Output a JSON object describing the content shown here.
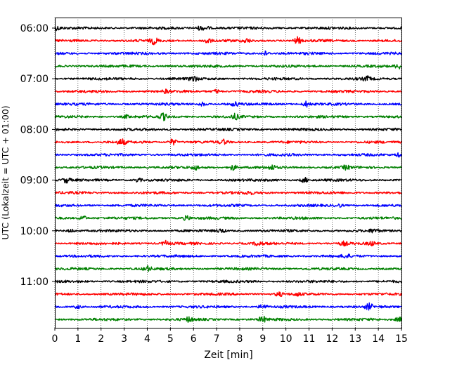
{
  "chart_data": {
    "type": "line",
    "title": "",
    "xlabel": "Zeit  [min]",
    "ylabel": "UTC (Lokalzeit = UTC + 01:00)",
    "xlim": [
      0,
      15
    ],
    "x_ticks": [
      "0",
      "1",
      "2",
      "3",
      "4",
      "5",
      "6",
      "7",
      "8",
      "9",
      "10",
      "11",
      "12",
      "13",
      "14",
      "15"
    ],
    "y_tick_labels": [
      "06:00",
      "07:00",
      "08:00",
      "09:00",
      "10:00",
      "11:00"
    ],
    "grid": "vertical dotted lines at each minute",
    "trace_interval_minutes": 15,
    "color_cycle": [
      "#000000",
      "#ff0000",
      "#0000ff",
      "#008000"
    ],
    "traces": [
      {
        "start": "06:00",
        "color": "#000000",
        "events": [
          {
            "t": 0.1,
            "amp": 2.5
          },
          {
            "t": 6.3,
            "amp": 3.0
          },
          {
            "t": 6.6,
            "amp": 2.0
          }
        ]
      },
      {
        "start": "06:15",
        "color": "#ff0000",
        "events": [
          {
            "t": 4.3,
            "amp": 4.5
          },
          {
            "t": 6.6,
            "amp": 4.0
          },
          {
            "t": 8.3,
            "amp": 2.5
          },
          {
            "t": 10.5,
            "amp": 4.5
          }
        ]
      },
      {
        "start": "06:30",
        "color": "#0000ff",
        "events": [
          {
            "t": 9.1,
            "amp": 3.0
          }
        ]
      },
      {
        "start": "06:45",
        "color": "#008000",
        "events": [
          {
            "t": 14.9,
            "amp": 3.5
          }
        ]
      },
      {
        "start": "07:00",
        "color": "#000000",
        "events": [
          {
            "t": 6.0,
            "amp": 3.5
          },
          {
            "t": 13.5,
            "amp": 3.0
          }
        ]
      },
      {
        "start": "07:15",
        "color": "#ff0000",
        "events": [
          {
            "t": 4.8,
            "amp": 2.0
          },
          {
            "t": 7.0,
            "amp": 2.5
          }
        ]
      },
      {
        "start": "07:30",
        "color": "#0000ff",
        "events": [
          {
            "t": 6.4,
            "amp": 2.5
          },
          {
            "t": 7.8,
            "amp": 2.5
          },
          {
            "t": 10.9,
            "amp": 4.0
          }
        ]
      },
      {
        "start": "07:45",
        "color": "#008000",
        "events": [
          {
            "t": 4.7,
            "amp": 4.5
          },
          {
            "t": 7.8,
            "amp": 3.5
          },
          {
            "t": 3.1,
            "amp": 2.0
          }
        ]
      },
      {
        "start": "08:00",
        "color": "#000000",
        "events": []
      },
      {
        "start": "08:15",
        "color": "#ff0000",
        "events": [
          {
            "t": 2.9,
            "amp": 4.0
          },
          {
            "t": 5.1,
            "amp": 4.5
          },
          {
            "t": 7.3,
            "amp": 3.0
          }
        ]
      },
      {
        "start": "08:30",
        "color": "#0000ff",
        "events": [
          {
            "t": 14.9,
            "amp": 2.5
          }
        ]
      },
      {
        "start": "08:45",
        "color": "#008000",
        "events": [
          {
            "t": 6.1,
            "amp": 2.5
          },
          {
            "t": 7.7,
            "amp": 4.0
          },
          {
            "t": 9.4,
            "amp": 3.0
          },
          {
            "t": 12.6,
            "amp": 2.5
          }
        ]
      },
      {
        "start": "09:00",
        "color": "#000000",
        "events": [
          {
            "t": 0.5,
            "amp": 3.5
          },
          {
            "t": 3.6,
            "amp": 2.5
          },
          {
            "t": 10.8,
            "amp": 3.5
          }
        ]
      },
      {
        "start": "09:15",
        "color": "#ff0000",
        "events": [
          {
            "t": 8.4,
            "amp": 2.0
          }
        ]
      },
      {
        "start": "09:30",
        "color": "#0000ff",
        "events": [
          {
            "t": 12.3,
            "amp": 2.0
          }
        ]
      },
      {
        "start": "09:45",
        "color": "#008000",
        "events": [
          {
            "t": 1.2,
            "amp": 3.5
          },
          {
            "t": 5.7,
            "amp": 3.0
          }
        ]
      },
      {
        "start": "10:00",
        "color": "#000000",
        "events": [
          {
            "t": 0.7,
            "amp": 2.0
          },
          {
            "t": 7.2,
            "amp": 2.5
          },
          {
            "t": 13.8,
            "amp": 2.5
          }
        ]
      },
      {
        "start": "10:15",
        "color": "#ff0000",
        "events": [
          {
            "t": 4.8,
            "amp": 3.0
          },
          {
            "t": 8.8,
            "amp": 3.0
          },
          {
            "t": 12.5,
            "amp": 2.5
          },
          {
            "t": 13.7,
            "amp": 2.5
          }
        ]
      },
      {
        "start": "10:30",
        "color": "#0000ff",
        "events": [
          {
            "t": 12.6,
            "amp": 2.5
          }
        ]
      },
      {
        "start": "10:45",
        "color": "#008000",
        "events": [
          {
            "t": 4.0,
            "amp": 3.5
          }
        ]
      },
      {
        "start": "11:00",
        "color": "#000000",
        "events": []
      },
      {
        "start": "11:15",
        "color": "#ff0000",
        "events": [
          {
            "t": 9.7,
            "amp": 3.0
          },
          {
            "t": 10.5,
            "amp": 2.0
          }
        ]
      },
      {
        "start": "11:30",
        "color": "#0000ff",
        "events": [
          {
            "t": 9.0,
            "amp": 3.5
          },
          {
            "t": 13.6,
            "amp": 4.0
          },
          {
            "t": 1.0,
            "amp": 2.0
          }
        ]
      },
      {
        "start": "11:45",
        "color": "#008000",
        "events": [
          {
            "t": 5.8,
            "amp": 3.0
          },
          {
            "t": 9.0,
            "amp": 4.0
          },
          {
            "t": 14.9,
            "amp": 3.0
          }
        ]
      }
    ]
  }
}
